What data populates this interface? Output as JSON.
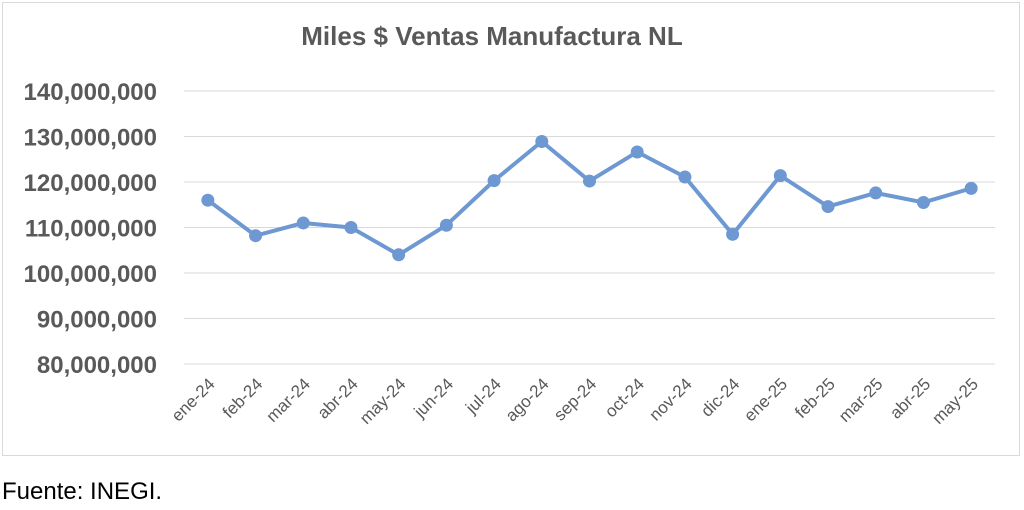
{
  "chart_data": {
    "type": "line",
    "title": "Miles $ Ventas Manufactura NL",
    "xlabel": "",
    "ylabel": "",
    "categories": [
      "ene-24",
      "feb-24",
      "mar-24",
      "abr-24",
      "may-24",
      "jun-24",
      "jul-24",
      "ago-24",
      "sep-24",
      "oct-24",
      "nov-24",
      "dic-24",
      "ene-25",
      "feb-25",
      "mar-25",
      "abr-25",
      "may-25"
    ],
    "series": [
      {
        "values": [
          116000000,
          108200000,
          111000000,
          110000000,
          104000000,
          110500000,
          120300000,
          128900000,
          120200000,
          126600000,
          121100000,
          108500000,
          121400000,
          114600000,
          117600000,
          115500000,
          118600000
        ],
        "color": "#6d98d2"
      }
    ],
    "ylim": [
      80000000,
      140000000
    ],
    "yticks": [
      80000000,
      90000000,
      100000000,
      110000000,
      120000000,
      130000000,
      140000000
    ],
    "ytick_labels": [
      "80,000,000",
      "90,000,000",
      "100,000,000",
      "110,000,000",
      "120,000,000",
      "130,000,000",
      "140,000,000"
    ],
    "grid": true,
    "legend": "none"
  },
  "source_note": "Fuente: INEGI."
}
